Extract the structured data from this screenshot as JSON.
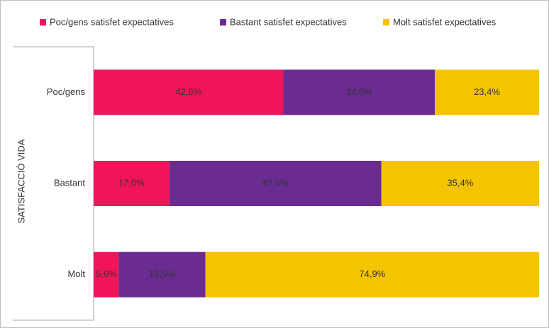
{
  "chart_data": {
    "type": "stacked-bar",
    "orientation": "horizontal",
    "y_label": "SATISFACCIÓ VIDA",
    "categories": [
      "Poc/gens",
      "Bastant",
      "Molt"
    ],
    "xlim": [
      0,
      100
    ],
    "legend": "top",
    "series": [
      {
        "name": "Poc/gens satisfet expectatives",
        "color": "#f0145a",
        "values": [
          42.6,
          17.0,
          5.6
        ],
        "value_labels": [
          "42,6%",
          "17,0%",
          "5,6%"
        ]
      },
      {
        "name": "Bastant satisfet expectatives",
        "color": "#6a2c91",
        "values": [
          34.0,
          47.6,
          19.5
        ],
        "value_labels": [
          "34,0%",
          "47,6%",
          "19,5%"
        ]
      },
      {
        "name": "Molt satisfet expectatives",
        "color": "#f5c400",
        "values": [
          23.4,
          35.4,
          74.9
        ],
        "value_labels": [
          "23,4%",
          "35,4%",
          "74,9%"
        ]
      }
    ]
  }
}
